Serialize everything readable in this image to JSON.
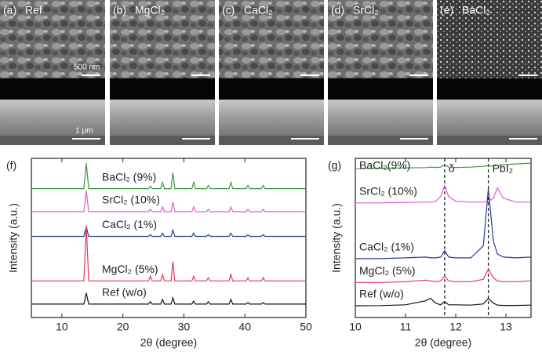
{
  "panels": [
    {
      "label": "(a)",
      "name": "Ref",
      "scale_top": "500 nm",
      "scale_bottom": "1 μm"
    },
    {
      "label": "(b)",
      "name": "MgCl₂"
    },
    {
      "label": "(c)",
      "name": "CaCl₂"
    },
    {
      "label": "(d)",
      "name": "SrCl₂"
    },
    {
      "label": "(e)",
      "name": "BaCl₂"
    }
  ],
  "chart_data": [
    {
      "type": "line",
      "panel_label": "(f)",
      "x_label": "2θ (degree)",
      "y_label": "Intensity (a.u.)",
      "xlim": [
        5,
        50
      ],
      "xticks": [
        10,
        20,
        30,
        40,
        50
      ],
      "ylim": [
        0,
        100
      ],
      "x": [
        5,
        13.6,
        14,
        14.4,
        24.2,
        24.5,
        24.8,
        26.2,
        26.5,
        26.8,
        27.9,
        28.2,
        28.5,
        31.3,
        31.6,
        31.9,
        33.7,
        34,
        34.3,
        37.4,
        37.7,
        38,
        40.2,
        40.5,
        40.8,
        42.7,
        43,
        43.3,
        50
      ],
      "series": [
        {
          "name": "BaCl₂ (9%)",
          "color": "#3c9a3c",
          "values": [
            81,
            81,
            97,
            81,
            81,
            82.5,
            81,
            81,
            85,
            81,
            81,
            91,
            81,
            81,
            85,
            81,
            81,
            83,
            81,
            81,
            85,
            81,
            81,
            83,
            81,
            81,
            83,
            81,
            81
          ]
        },
        {
          "name": "SrCl₂ (10%)",
          "color": "#d75fd7",
          "values": [
            66.5,
            66.5,
            79.5,
            66.5,
            66.5,
            68,
            66.5,
            66.5,
            69.5,
            66.5,
            66.5,
            72.5,
            66.5,
            66.5,
            69.5,
            66.5,
            66.5,
            68,
            66.5,
            66.5,
            69.5,
            66.5,
            66.5,
            68,
            66.5,
            66.5,
            68,
            66.5,
            66.5
          ]
        },
        {
          "name": "CaCl₂ (1%)",
          "color": "#2b3a9a",
          "values": [
            51,
            51,
            57,
            51,
            51,
            52,
            51,
            51,
            53,
            51,
            51,
            55,
            51,
            51,
            53,
            51,
            51,
            52,
            51,
            51,
            53,
            51,
            51,
            52,
            51,
            51,
            52,
            51,
            51
          ]
        },
        {
          "name": "MgCl₂ (5%)",
          "color": "#e0385a",
          "values": [
            23,
            23,
            58,
            23,
            23,
            26,
            23,
            23,
            27,
            23,
            23,
            35,
            23,
            23,
            26,
            23,
            23,
            25,
            23,
            23,
            27,
            23,
            23,
            25,
            23,
            23,
            25,
            23,
            23
          ]
        },
        {
          "name": "Ref (w/o)",
          "color": "#111111",
          "values": [
            8.4,
            8.4,
            15.4,
            8.4,
            8.4,
            9.9,
            8.4,
            8.4,
            11.4,
            8.4,
            8.4,
            12.4,
            8.4,
            8.4,
            10.4,
            8.4,
            8.4,
            9.9,
            8.4,
            8.4,
            11.4,
            8.4,
            8.4,
            9.4,
            8.4,
            8.4,
            9.4,
            8.4,
            8.4
          ]
        }
      ]
    },
    {
      "type": "line",
      "panel_label": "(g)",
      "x_label": "2θ (degree)",
      "y_label": "Intensity (a.u.)",
      "xlim": [
        10,
        13.5
      ],
      "xticks": [
        10,
        11,
        12,
        13
      ],
      "ylim": [
        0,
        100
      ],
      "x": [
        10,
        10.5,
        11,
        11.4,
        11.5,
        11.6,
        11.7,
        11.78,
        11.86,
        12,
        12.3,
        12.55,
        12.65,
        12.75,
        12.83,
        12.95,
        13.2,
        13.5
      ],
      "annotations": [
        {
          "text": "δ",
          "x": 11.78
        },
        {
          "text": "PbI₂",
          "x": 12.65
        }
      ],
      "series": [
        {
          "name": "BaCl₂(9%)",
          "color": "#3c9a3c",
          "values": [
            93.5,
            93.8,
            94,
            94.2,
            94.5,
            94.3,
            94.5,
            96,
            94.5,
            94.3,
            94.5,
            95,
            95.5,
            95,
            95.5,
            96,
            96.5,
            97
          ]
        },
        {
          "name": "SrCl₂ (10%)",
          "color": "#d75fd7",
          "values": [
            72,
            72,
            72.3,
            72.5,
            72.5,
            73,
            76,
            83,
            76,
            73,
            72.5,
            72.5,
            73,
            75,
            81.5,
            75,
            72.5,
            72.5
          ]
        },
        {
          "name": "CaCl₂ (1%)",
          "color": "#2b3a9a",
          "values": [
            37,
            37,
            37.5,
            38,
            37.5,
            37.5,
            38,
            42,
            38,
            37.5,
            37.5,
            45,
            81,
            48,
            40,
            38,
            37.5,
            38
          ]
        },
        {
          "name": "MgCl₂ (5%)",
          "color": "#e0385a",
          "values": [
            22,
            22,
            22.5,
            23.5,
            23,
            22.5,
            23,
            26,
            23,
            22.5,
            22.5,
            24,
            30.5,
            25,
            23,
            22.5,
            22.5,
            23
          ]
        },
        {
          "name": "Ref (w/o)",
          "color": "#111111",
          "values": [
            7.4,
            7.5,
            8,
            10.5,
            12,
            9,
            8,
            10,
            8,
            8,
            7.8,
            8.5,
            12,
            9,
            7.8,
            7.6,
            7.6,
            7.8
          ]
        }
      ]
    }
  ]
}
